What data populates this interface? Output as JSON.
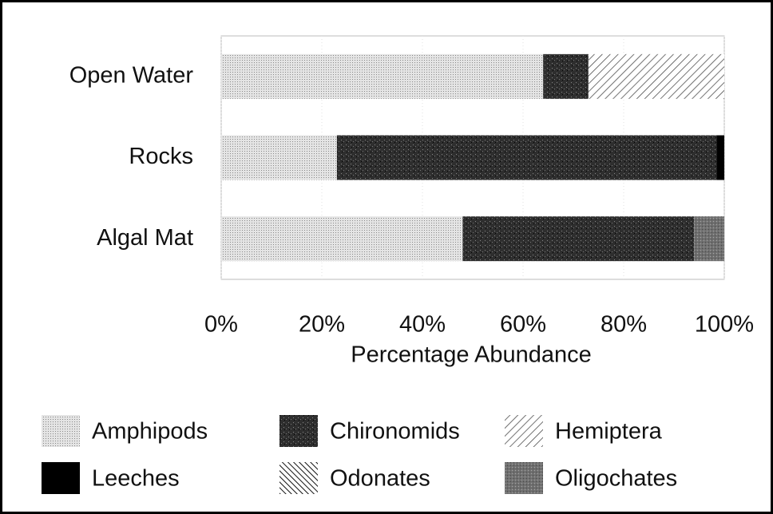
{
  "chart_data": {
    "type": "stacked-barh",
    "x_label": "Percentage Abundance",
    "categories": [
      "Open Water",
      "Rocks",
      "Algal Mat"
    ],
    "series": [
      {
        "name": "Amphipods",
        "color": "#c8c8c8",
        "pattern": "dots",
        "values": [
          64,
          23,
          48
        ]
      },
      {
        "name": "Chironomids",
        "color": "#3a3a3a",
        "pattern": "mottled",
        "values": [
          9,
          75.5,
          46
        ]
      },
      {
        "name": "Hemiptera",
        "color": "#ffffff",
        "pattern": "hatch-right",
        "values": [
          27,
          0,
          0
        ]
      },
      {
        "name": "Leeches",
        "color": "#000000",
        "pattern": "solid",
        "values": [
          0,
          1.5,
          0
        ]
      },
      {
        "name": "Odonates",
        "color": "#ffffff",
        "pattern": "hatch-left",
        "values": [
          0,
          0,
          0
        ]
      },
      {
        "name": "Oligochates",
        "color": "#6e6e6e",
        "pattern": "mottled-light",
        "values": [
          0,
          0,
          6
        ]
      }
    ],
    "xlim": [
      0,
      100
    ],
    "xticks": [
      {
        "value": 0,
        "label": "0%"
      },
      {
        "value": 20,
        "label": "20%"
      },
      {
        "value": 40,
        "label": "40%"
      },
      {
        "value": 60,
        "label": "60%"
      },
      {
        "value": 80,
        "label": "80%"
      },
      {
        "value": 100,
        "label": "100%"
      }
    ],
    "grid": true,
    "legend": "bottom"
  }
}
